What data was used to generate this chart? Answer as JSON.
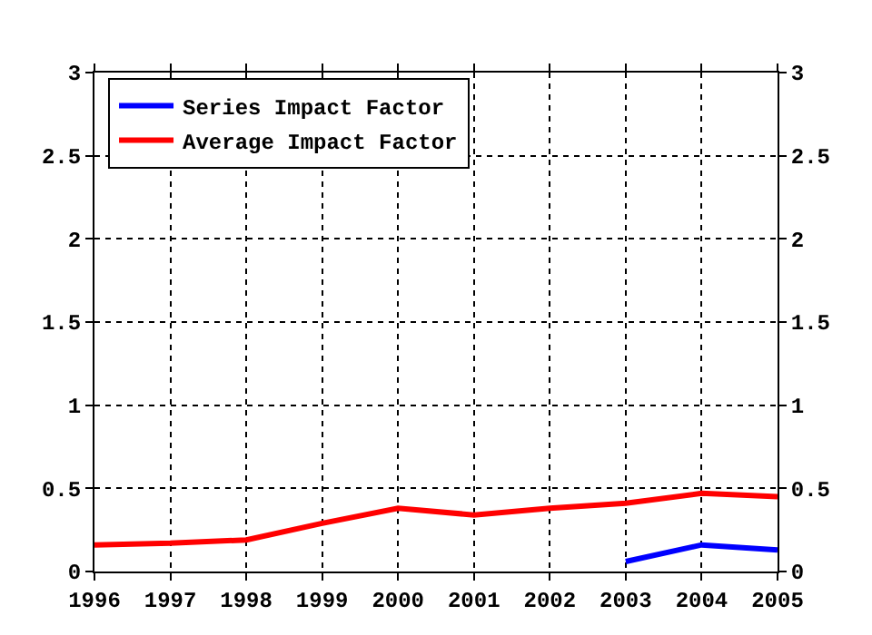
{
  "chart_data": {
    "type": "line",
    "x": [
      1996,
      1997,
      1998,
      1999,
      2000,
      2001,
      2002,
      2003,
      2004,
      2005
    ],
    "series": [
      {
        "name": "Series Impact Factor",
        "color": "#0000ff",
        "values": [
          null,
          null,
          null,
          null,
          null,
          null,
          null,
          0.06,
          0.16,
          0.13
        ]
      },
      {
        "name": "Average Impact Factor",
        "color": "#ff0000",
        "values": [
          0.16,
          0.17,
          0.19,
          0.29,
          0.38,
          0.34,
          0.38,
          0.41,
          0.47,
          0.45
        ]
      }
    ],
    "xlim": [
      1996,
      2005
    ],
    "xticks": [
      1996,
      1997,
      1998,
      1999,
      2000,
      2001,
      2002,
      2003,
      2004,
      2005
    ],
    "ylim": [
      0,
      3
    ],
    "yticks": [
      0,
      0.5,
      1,
      1.5,
      2,
      2.5,
      3
    ],
    "y2lim": [
      0,
      3
    ],
    "y2ticks": [
      0,
      0.5,
      1,
      1.5,
      2,
      2.5,
      3
    ],
    "grid": true,
    "legend": "top left",
    "marker": "none",
    "line_style": "solid"
  }
}
